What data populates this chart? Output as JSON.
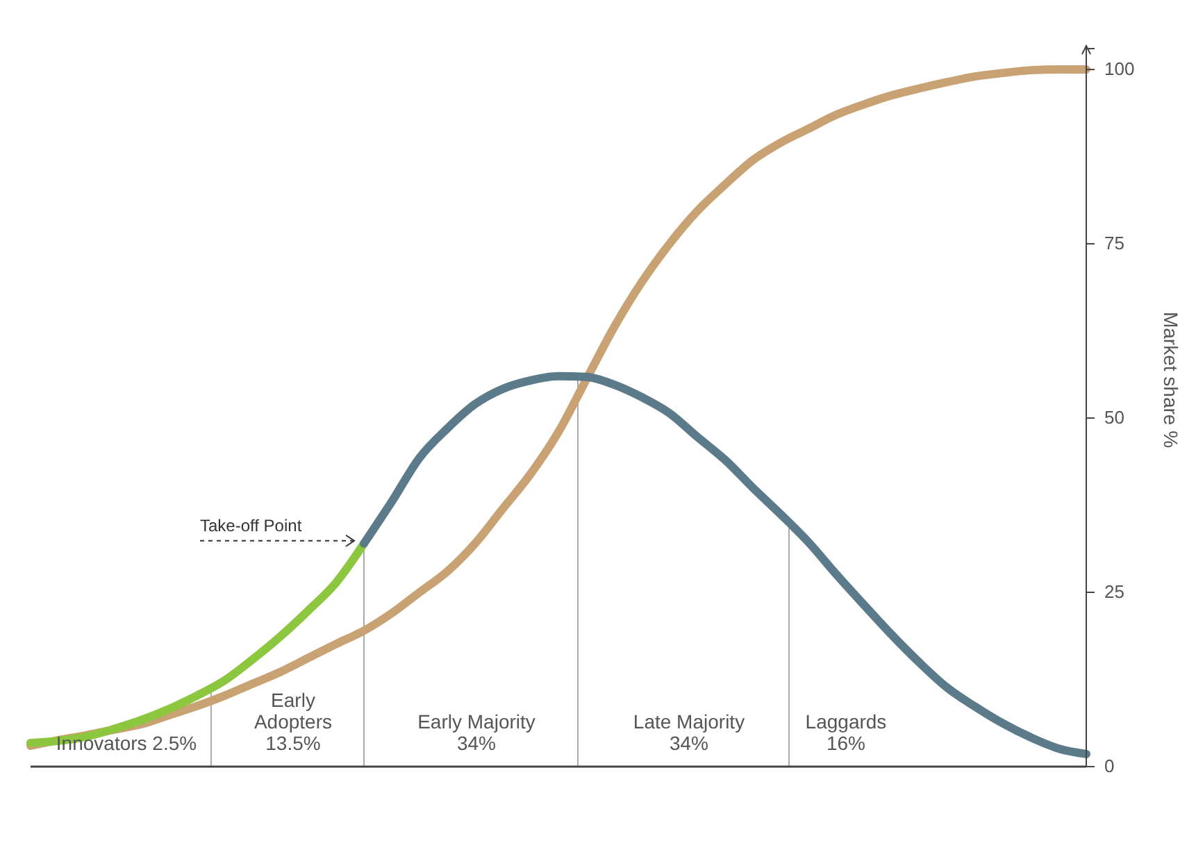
{
  "chart_data": {
    "type": "line",
    "ylabel": "Market share %",
    "ylim": [
      0,
      103
    ],
    "yticks": [
      0,
      25,
      50,
      75,
      100
    ],
    "tick_labels": "y",
    "grid": false,
    "marker": "none",
    "line_style": "solid",
    "categories": [
      null,
      null,
      null,
      null,
      null,
      null,
      null,
      null,
      null,
      null,
      null,
      null,
      null,
      null,
      null,
      null,
      null,
      null,
      null,
      null,
      null,
      null,
      null,
      null,
      null,
      null,
      null,
      null,
      null,
      null,
      null,
      null,
      null,
      null,
      null,
      null,
      null,
      null,
      null
    ],
    "series": [
      {
        "color": "#c9a273",
        "values": [
          3,
          3.8,
          4.5,
          5.3,
          6.1,
          7.4,
          8.7,
          10.2,
          11.9,
          13.6,
          15.6,
          17.6,
          19.5,
          22,
          25,
          28,
          32,
          37,
          42,
          48,
          55.5,
          63,
          69.5,
          75,
          79.7,
          83.5,
          87,
          89.5,
          91.5,
          93.5,
          95,
          96.3,
          97.3,
          98.2,
          99,
          99.5,
          99.9,
          100,
          100
        ]
      },
      {
        "color": "#8dc63f",
        "values": [
          3.4,
          3.7,
          4.3,
          5.4,
          6.7,
          8.3,
          10.2,
          12.4,
          15.4,
          18.7,
          22.4,
          26.4,
          32,
          null,
          null,
          null,
          null,
          null,
          null,
          null,
          null,
          null,
          null,
          null,
          null,
          null,
          null,
          null,
          null,
          null,
          null,
          null,
          null,
          null,
          null,
          null,
          null,
          null,
          null
        ]
      },
      {
        "color": "#5b7a8a",
        "values": [
          null,
          null,
          null,
          null,
          null,
          null,
          null,
          null,
          null,
          null,
          null,
          null,
          32,
          38,
          44.3,
          48.5,
          52,
          54.2,
          55.4,
          56,
          55.9,
          54.8,
          53,
          50.7,
          47.3,
          44,
          40,
          36.2,
          32.2,
          27.6,
          23.2,
          18.9,
          14.9,
          11.3,
          8.6,
          6.2,
          4.2,
          2.6,
          1.8
        ]
      }
    ],
    "annotations": [
      "Innovators 2.5%",
      "Early\nAdopters\n13.5%",
      "Early Majority\n34%",
      "Late Majority\n34%",
      "Laggards\n16%",
      "Take-off Point"
    ]
  }
}
